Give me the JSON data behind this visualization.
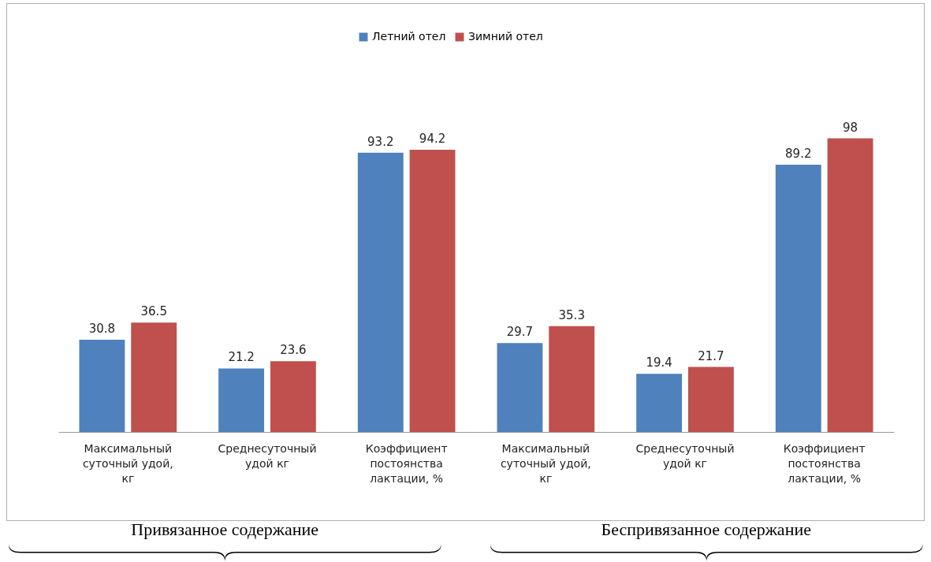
{
  "chart_data": {
    "type": "bar",
    "categories": [
      "Максимальный суточный удой, кг",
      "Среднесуточный удой кг",
      "Коэффициент постоянства лактации, %",
      "Максимальный суточный удой, кг",
      "Среднесуточный удой кг",
      "Коэффициент постоянства лактации, %"
    ],
    "series": [
      {
        "name": "Летний отел",
        "color": "#4f81bd",
        "values": [
          30.8,
          21.2,
          93.2,
          29.7,
          19.4,
          89.2
        ]
      },
      {
        "name": "Зимний отел",
        "color": "#c0504d",
        "values": [
          36.5,
          23.6,
          94.2,
          35.3,
          21.7,
          98
        ]
      }
    ],
    "data_labels": true,
    "legend": "top",
    "grid": false,
    "annotations": [
      "Привязанное содержание",
      "Беспривязанное содержание"
    ]
  }
}
